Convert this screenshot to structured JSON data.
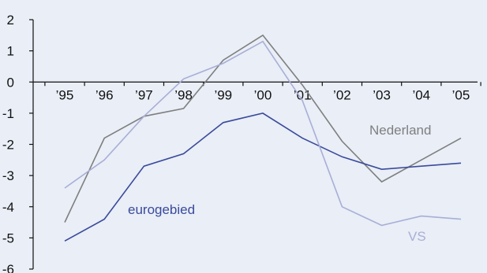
{
  "chart_data": {
    "type": "line",
    "title": "",
    "xlabel": "",
    "ylabel": "",
    "categories": [
      "’95",
      "’96",
      "’97",
      "’98",
      "’99",
      "’00",
      "’01",
      "’02",
      "’03",
      "’04",
      "’05"
    ],
    "y_ticks": [
      "2",
      "1",
      "0",
      "-1",
      "-2",
      "-3",
      "-4",
      "-5",
      "-6"
    ],
    "ylim": [
      -6,
      2
    ],
    "grid": false,
    "legend": "none",
    "series": [
      {
        "name": "Nederland",
        "color": "#7f7f7f",
        "values": [
          -4.5,
          -1.8,
          -1.1,
          -0.85,
          0.7,
          1.5,
          -0.1,
          -1.9,
          -3.2,
          -2.5,
          -1.8
        ]
      },
      {
        "name": "eurogebied",
        "color": "#3a4a9a",
        "values": [
          -5.1,
          -4.4,
          -2.7,
          -2.3,
          -1.3,
          -1.0,
          -1.8,
          -2.4,
          -2.8,
          -2.7,
          -2.6
        ]
      },
      {
        "name": "VS",
        "color": "#a9aed6",
        "values": [
          -3.4,
          -2.5,
          -1.1,
          0.1,
          0.6,
          1.3,
          -0.6,
          -4.0,
          -4.6,
          -4.3,
          -4.4
        ]
      }
    ]
  }
}
